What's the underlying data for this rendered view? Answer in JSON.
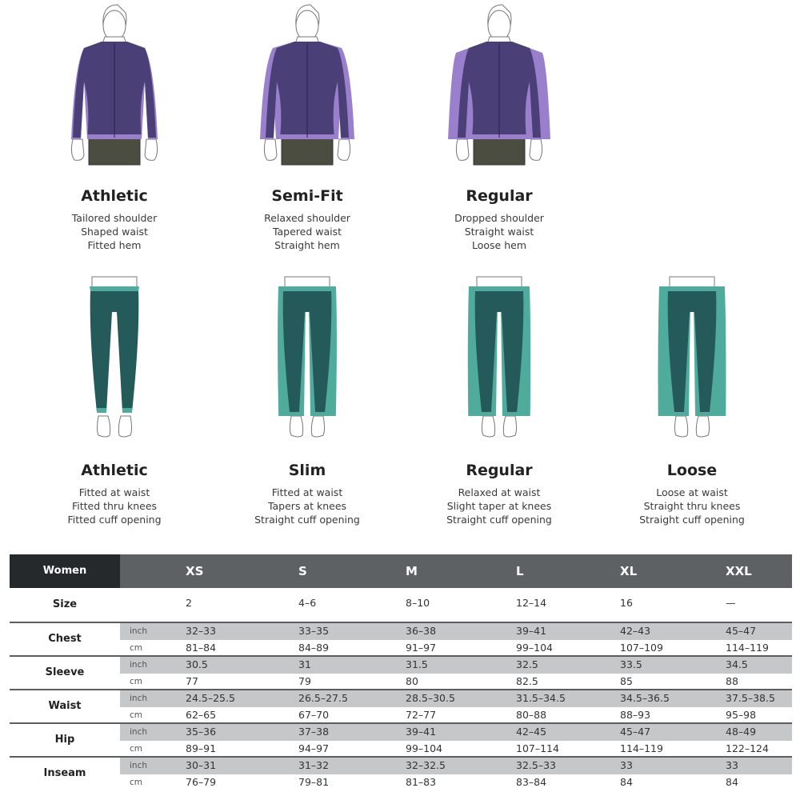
{
  "colors": {
    "jacket_dark": "#4b3f78",
    "jacket_light": "#9a80cc",
    "shorts": "#4a4d40",
    "pants_dark": "#245a5a",
    "pants_light": "#4fab9c",
    "header_dark": "#25292c",
    "header_gray": "#5d6163",
    "band_gray": "#c6c7c9"
  },
  "jackets": [
    {
      "title": "Athletic",
      "lines": [
        "Tailored shoulder",
        "Shaped waist",
        "Fitted hem"
      ]
    },
    {
      "title": "Semi-Fit",
      "lines": [
        "Relaxed shoulder",
        "Tapered waist",
        "Straight hem"
      ]
    },
    {
      "title": "Regular",
      "lines": [
        "Dropped shoulder",
        "Straight waist",
        "Loose hem"
      ]
    }
  ],
  "pants": [
    {
      "title": "Athletic",
      "lines": [
        "Fitted at waist",
        "Fitted thru knees",
        "Fitted cuff opening"
      ]
    },
    {
      "title": "Slim",
      "lines": [
        "Fitted at waist",
        "Tapers at knees",
        "Straight cuff opening"
      ]
    },
    {
      "title": "Regular",
      "lines": [
        "Relaxed at waist",
        "Slight taper at knees",
        "Straight cuff opening"
      ]
    },
    {
      "title": "Loose",
      "lines": [
        "Loose at waist",
        "Straight thru knees",
        "Straight cuff opening"
      ]
    }
  ],
  "table": {
    "corner": "Women",
    "sizes": [
      "XS",
      "S",
      "M",
      "L",
      "XL",
      "XXL"
    ],
    "size_row": {
      "label": "Size",
      "values": [
        "2",
        "4–6",
        "8–10",
        "12–14",
        "16",
        "—"
      ]
    },
    "groups": [
      {
        "label": "Chest",
        "inch_label": "inch",
        "cm_label": "cm",
        "inch": [
          "32–33",
          "33–35",
          "36–38",
          "39–41",
          "42–43",
          "45–47"
        ],
        "cm": [
          "81–84",
          "84–89",
          "91–97",
          "99–104",
          "107–109",
          "114–119"
        ]
      },
      {
        "label": "Sleeve",
        "inch_label": "inch",
        "cm_label": "cm",
        "inch": [
          "30.5",
          "31",
          "31.5",
          "32.5",
          "33.5",
          "34.5"
        ],
        "cm": [
          "77",
          "79",
          "80",
          "82.5",
          "85",
          "88"
        ]
      },
      {
        "label": "Waist",
        "inch_label": "inch",
        "cm_label": "cm",
        "inch": [
          "24.5–25.5",
          "26.5–27.5",
          "28.5–30.5",
          "31.5–34.5",
          "34.5–36.5",
          "37.5–38.5"
        ],
        "cm": [
          "62–65",
          "67–70",
          "72–77",
          "80–88",
          "88–93",
          "95–98"
        ]
      },
      {
        "label": "Hip",
        "inch_label": "inch",
        "cm_label": "cm",
        "inch": [
          "35–36",
          "37–38",
          "39–41",
          "42–45",
          "45–47",
          "48–49"
        ],
        "cm": [
          "89–91",
          "94–97",
          "99–104",
          "107–114",
          "114–119",
          "122–124"
        ]
      },
      {
        "label": "Inseam",
        "inch_label": "inch",
        "cm_label": "cm",
        "inch": [
          "30–31",
          "31–32",
          "32–32.5",
          "32.5–33",
          "33",
          "33"
        ],
        "cm": [
          "76–79",
          "79–81",
          "81–83",
          "83–84",
          "84",
          "84"
        ]
      }
    ]
  }
}
